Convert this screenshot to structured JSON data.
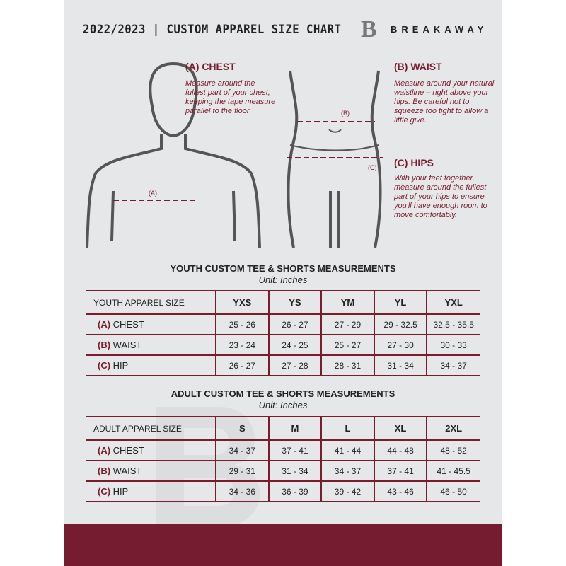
{
  "header": {
    "title": "2022/2023  |  CUSTOM APPAREL SIZE CHART",
    "brand": "BREAKAWAY",
    "logo_letter": "B"
  },
  "colors": {
    "accent": "#7a1c2e",
    "background": "#e6e7e8"
  },
  "measures": {
    "chest": {
      "heading": "(A) CHEST",
      "text": "Measure around the fullest part of your chest, keeping the tape measure parallel to the floor",
      "marker": "(A)"
    },
    "waist": {
      "heading": "(B) WAIST",
      "text": "Measure around your natural waistline – right above your hips. Be careful not to squeeze too tight to allow a little give.",
      "marker": "(B)"
    },
    "hips": {
      "heading": "(C) HIPS",
      "text": "With your feet together, measure around the fullest part of your hips to ensure you'll have enough room to move comfortably.",
      "marker": "(C)"
    }
  },
  "youth": {
    "title": "YOUTH CUSTOM TEE & SHORTS MEASUREMENTS",
    "unit": "Unit: Inches",
    "header": [
      "YOUTH APPAREL SIZE",
      "YXS",
      "YS",
      "YM",
      "YL",
      "YXL"
    ],
    "rows": [
      {
        "letter": "(A)",
        "label": "CHEST",
        "values": [
          "25 - 26",
          "26 - 27",
          "27 - 29",
          "29 - 32.5",
          "32.5 - 35.5"
        ]
      },
      {
        "letter": "(B)",
        "label": "WAIST",
        "values": [
          "23 - 24",
          "24 - 25",
          "25 - 27",
          "27 - 30",
          "30 - 33"
        ]
      },
      {
        "letter": "(C)",
        "label": "HIP",
        "values": [
          "26 - 27",
          "27 - 28",
          "28 - 31",
          "31 - 34",
          "34 - 37"
        ]
      }
    ]
  },
  "adult": {
    "title": "ADULT CUSTOM TEE & SHORTS MEASUREMENTS",
    "unit": "Unit: Inches",
    "header": [
      "ADULT APPAREL SIZE",
      "S",
      "M",
      "L",
      "XL",
      "2XL"
    ],
    "rows": [
      {
        "letter": "(A)",
        "label": "CHEST",
        "values": [
          "34 - 37",
          "37 - 41",
          "41 - 44",
          "44 - 48",
          "48 - 52"
        ]
      },
      {
        "letter": "(B)",
        "label": "WAIST",
        "values": [
          "29 - 31",
          "31 - 34",
          "34 - 37",
          "37 - 41",
          "41 - 45.5"
        ]
      },
      {
        "letter": "(C)",
        "label": "HIP",
        "values": [
          "34 - 36",
          "36 - 39",
          "39 - 42",
          "43 - 46",
          "46 - 50"
        ]
      }
    ]
  }
}
